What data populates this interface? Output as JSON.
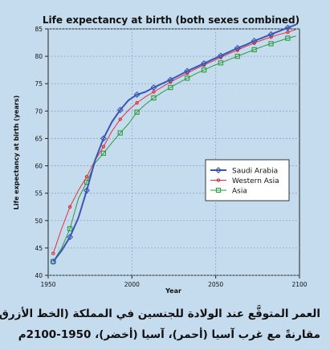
{
  "caption": {
    "line1": "العمر المتوقَّع عند الولادة للجنسين في المملكة (الخط الأزرق)،",
    "line2": "مقارنةً مع غرب آسيا (أحمر)، آسيا (أخضر)، 1950-2100م"
  },
  "chart_data": {
    "type": "line",
    "title": "Life expectancy at birth (both sexes combined)",
    "xlabel": "Year",
    "ylabel": "Life expectancy at birth (years)",
    "xlim": [
      1950,
      2100
    ],
    "ylim": [
      40,
      85
    ],
    "xticks": [
      1950,
      2000,
      2050,
      2100
    ],
    "yticks": [
      40,
      45,
      50,
      55,
      60,
      65,
      70,
      75,
      80,
      85
    ],
    "grid": true,
    "legend_position": "center-right",
    "series": [
      {
        "name": "Saudi Arabia",
        "color": "#3a55b4",
        "marker": "diamond",
        "x": [
          1953,
          1958,
          1963,
          1968,
          1973,
          1978,
          1983,
          1988,
          1993,
          1998,
          2003,
          2008,
          2013,
          2018,
          2023,
          2028,
          2033,
          2038,
          2043,
          2048,
          2053,
          2058,
          2063,
          2068,
          2073,
          2078,
          2083,
          2088,
          2093,
          2098
        ],
        "values": [
          42.5,
          44.5,
          47.0,
          50.5,
          55.5,
          61.0,
          65.0,
          68.0,
          70.2,
          72.0,
          73.0,
          73.5,
          74.3,
          75.0,
          75.7,
          76.5,
          77.3,
          78.0,
          78.7,
          79.4,
          80.1,
          80.8,
          81.5,
          82.1,
          82.8,
          83.4,
          84.0,
          84.6,
          85.2,
          85.8
        ]
      },
      {
        "name": "Western Asia",
        "color": "#e0303a",
        "marker": "circle",
        "x": [
          1953,
          1958,
          1963,
          1968,
          1973,
          1978,
          1983,
          1988,
          1993,
          1998,
          2003,
          2008,
          2013,
          2018,
          2023,
          2028,
          2033,
          2038,
          2043,
          2048,
          2053,
          2058,
          2063,
          2068,
          2073,
          2078,
          2083,
          2088,
          2093,
          2098
        ],
        "values": [
          44.0,
          48.5,
          52.5,
          55.5,
          58.0,
          61.0,
          63.5,
          66.3,
          68.5,
          70.2,
          71.5,
          72.6,
          73.5,
          74.4,
          75.3,
          76.1,
          76.9,
          77.7,
          78.4,
          79.1,
          79.8,
          80.5,
          81.1,
          81.8,
          82.4,
          83.0,
          83.5,
          84.0,
          84.4,
          84.9
        ]
      },
      {
        "name": "Asia",
        "color": "#2f9a3f",
        "marker": "square",
        "x": [
          1953,
          1958,
          1963,
          1968,
          1973,
          1978,
          1983,
          1988,
          1993,
          1998,
          2003,
          2008,
          2013,
          2018,
          2023,
          2028,
          2033,
          2038,
          2043,
          2048,
          2053,
          2058,
          2063,
          2068,
          2073,
          2078,
          2083,
          2088,
          2093,
          2098
        ],
        "values": [
          42.5,
          45.0,
          48.5,
          54.0,
          57.0,
          60.5,
          62.3,
          64.2,
          66.0,
          67.7,
          69.8,
          71.2,
          72.4,
          73.4,
          74.3,
          75.2,
          76.0,
          76.8,
          77.5,
          78.2,
          78.8,
          79.4,
          80.0,
          80.6,
          81.2,
          81.8,
          82.3,
          82.8,
          83.3,
          83.7
        ]
      }
    ]
  }
}
